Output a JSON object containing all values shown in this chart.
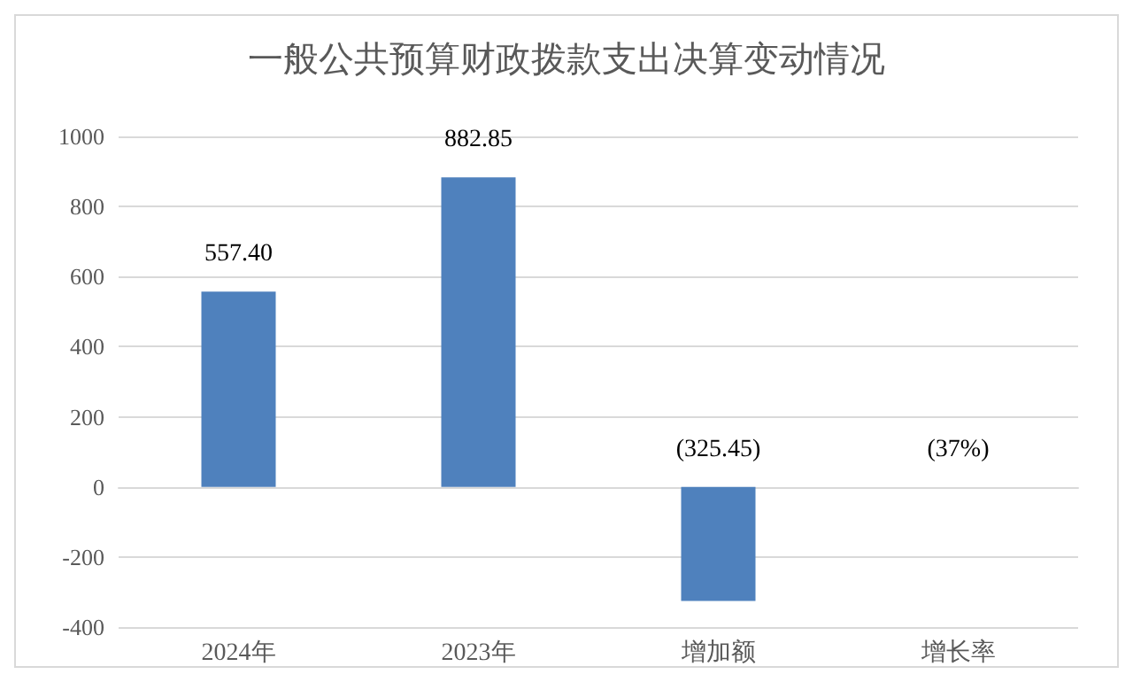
{
  "chart_data": {
    "type": "bar",
    "title": "一般公共预算财政拨款支出决算变动情况",
    "categories": [
      "2024年",
      "2023年",
      "增加额",
      "增长率"
    ],
    "values": [
      557.4,
      882.85,
      -325.45,
      -0.37
    ],
    "value_labels": [
      "557.40",
      "882.85",
      "(325.45)",
      "(37%)"
    ],
    "color": "#4f81bd",
    "ylim": [
      -400,
      1000
    ],
    "yticks": [
      -400,
      -200,
      0,
      200,
      400,
      600,
      800,
      1000
    ],
    "grid": "y"
  }
}
